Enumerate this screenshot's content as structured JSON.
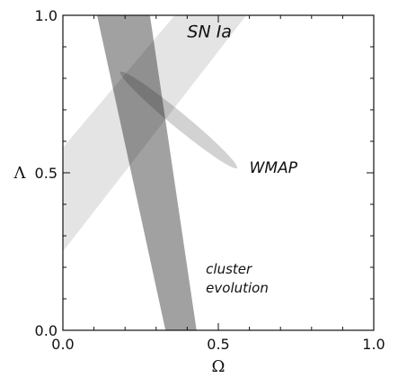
{
  "chart_data": {
    "type": "contour",
    "xlabel": "Ω",
    "ylabel": "Λ",
    "xlim": [
      0.0,
      1.0
    ],
    "ylim": [
      0.0,
      1.0
    ],
    "x_ticks": [
      0.0,
      0.5,
      1.0
    ],
    "y_ticks": [
      0.0,
      0.5,
      1.0
    ],
    "x_tick_labels": [
      "0.0",
      "0.5",
      "1.0"
    ],
    "y_tick_labels": [
      "0.0",
      "0.5",
      "1.0"
    ],
    "grid": false,
    "regions": [
      {
        "label": "SN Ia",
        "shape": "band",
        "color": "#e4e4e4",
        "left_edge": [
          [
            0.0,
            0.25
          ],
          [
            0.59,
            1.0
          ]
        ],
        "right_edge": [
          [
            0.0,
            0.58
          ],
          [
            0.36,
            1.0
          ]
        ]
      },
      {
        "label": "cluster evolution",
        "shape": "band",
        "color": "#8c8c8c",
        "left_edge": [
          [
            0.11,
            1.0
          ],
          [
            0.33,
            0.0
          ]
        ],
        "right_edge": [
          [
            0.28,
            1.0
          ],
          [
            0.43,
            0.0
          ]
        ]
      },
      {
        "label": "WMAP",
        "shape": "ellipse",
        "color": "#c8c8c8",
        "endpoints": [
          [
            0.185,
            0.82
          ],
          [
            0.56,
            0.515
          ]
        ]
      }
    ],
    "annotations": [
      {
        "text": "SN Ia",
        "x": 0.4,
        "y": 0.93
      },
      {
        "text": "WMAP",
        "x": 0.6,
        "y": 0.5
      },
      {
        "text": "cluster",
        "x": 0.46,
        "y": 0.18
      },
      {
        "text": "evolution",
        "x": 0.46,
        "y": 0.12
      }
    ]
  }
}
